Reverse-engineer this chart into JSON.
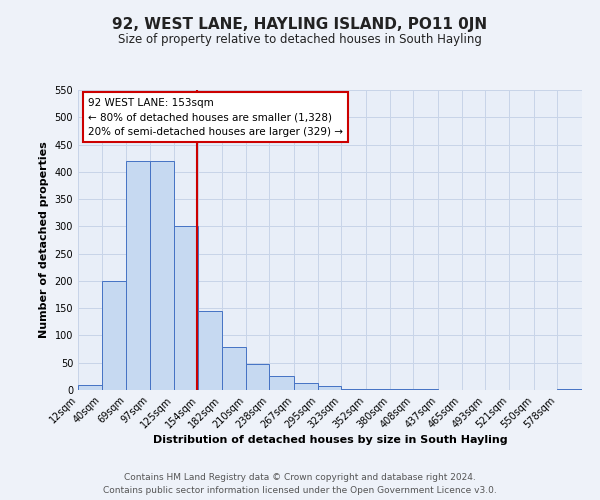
{
  "title": "92, WEST LANE, HAYLING ISLAND, PO11 0JN",
  "subtitle": "Size of property relative to detached houses in South Hayling",
  "xlabel": "Distribution of detached houses by size in South Hayling",
  "ylabel": "Number of detached properties",
  "bin_edges": [
    12,
    40,
    69,
    97,
    125,
    154,
    182,
    210,
    238,
    267,
    295,
    323,
    352,
    380,
    408,
    437,
    465,
    493,
    521,
    550,
    578,
    607
  ],
  "bar_heights": [
    10,
    200,
    420,
    420,
    300,
    145,
    78,
    48,
    25,
    13,
    8,
    1,
    1,
    1,
    1,
    0,
    0,
    0,
    0,
    0,
    2
  ],
  "bar_color": "#c6d9f1",
  "bar_edge_color": "#4472c4",
  "vline_x": 153,
  "vline_color": "#cc0000",
  "ylim": [
    0,
    550
  ],
  "xlim": [
    12,
    607
  ],
  "annotation_title": "92 WEST LANE: 153sqm",
  "annotation_line1": "← 80% of detached houses are smaller (1,328)",
  "annotation_line2": "20% of semi-detached houses are larger (329) →",
  "annotation_box_color": "#cc0000",
  "footer_line1": "Contains HM Land Registry data © Crown copyright and database right 2024.",
  "footer_line2": "Contains public sector information licensed under the Open Government Licence v3.0.",
  "background_color": "#eef2f9",
  "plot_bg_color": "#e8eef8",
  "grid_color": "#c8d4e8",
  "title_fontsize": 11,
  "subtitle_fontsize": 8.5,
  "axis_label_fontsize": 8,
  "tick_label_fontsize": 7,
  "footer_fontsize": 6.5,
  "ann_fontsize": 7.5
}
